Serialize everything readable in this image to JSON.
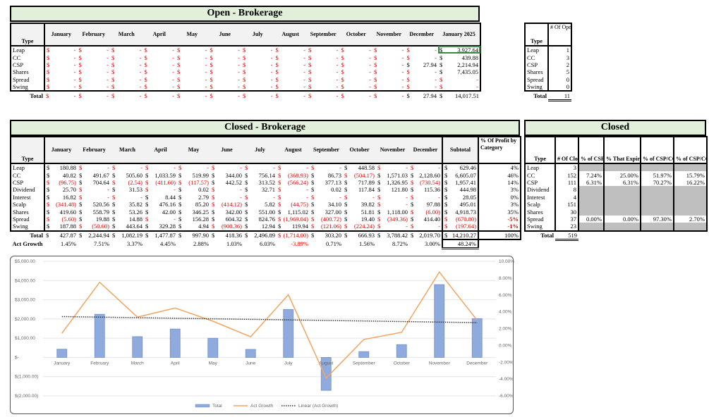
{
  "open_brokerage": {
    "title": "Open - Brokerage",
    "type_header": "Type",
    "months": [
      "January",
      "February",
      "March",
      "April",
      "May",
      "June",
      "July",
      "August",
      "September",
      "October",
      "November",
      "December",
      "January 2025"
    ],
    "rows": [
      {
        "type": "Leap",
        "values": [
          "-",
          "-",
          "-",
          "-",
          "-",
          "-",
          "-",
          "-",
          "-",
          "-",
          "-",
          "-",
          "3,927.64"
        ]
      },
      {
        "type": "CC",
        "values": [
          "-",
          "-",
          "-",
          "-",
          "-",
          "-",
          "-",
          "-",
          "-",
          "-",
          "-",
          "-",
          "439.88"
        ]
      },
      {
        "type": "CSP",
        "values": [
          "-",
          "-",
          "-",
          "-",
          "-",
          "-",
          "-",
          "-",
          "-",
          "-",
          "-",
          "27.94",
          "2,214.94"
        ]
      },
      {
        "type": "Shares",
        "values": [
          "-",
          "-",
          "-",
          "-",
          "-",
          "-",
          "-",
          "-",
          "-",
          "-",
          "-",
          "-",
          "7,435.05"
        ]
      },
      {
        "type": "Spread",
        "values": [
          "-",
          "-",
          "-",
          "-",
          "-",
          "-",
          "-",
          "-",
          "-",
          "-",
          "-",
          "-",
          "-"
        ]
      },
      {
        "type": "Swing",
        "values": [
          "-",
          "-",
          "-",
          "-",
          "-",
          "-",
          "-",
          "-",
          "-",
          "-",
          "-",
          "-",
          "-"
        ]
      }
    ],
    "total_label": "Total",
    "totals": [
      "-",
      "-",
      "-",
      "-",
      "-",
      "-",
      "-",
      "-",
      "-",
      "-",
      "-",
      "27.94",
      "14,017.51"
    ]
  },
  "open_trades": {
    "type_header": "Type",
    "header": "# Of Open Trades",
    "rows": [
      {
        "type": "Leap",
        "count": "1"
      },
      {
        "type": "CC",
        "count": "3"
      },
      {
        "type": "CSP",
        "count": "2"
      },
      {
        "type": "Shares",
        "count": "5"
      },
      {
        "type": "Spread",
        "count": "0"
      },
      {
        "type": "Swing",
        "count": "0"
      }
    ],
    "total_label": "Total",
    "total": "11"
  },
  "closed_brokerage": {
    "title": "Closed - Brokerage",
    "type_header": "Type",
    "months": [
      "January",
      "February",
      "March",
      "April",
      "May",
      "June",
      "July",
      "August",
      "September",
      "October",
      "November",
      "December"
    ],
    "subtotal_header": "Subtotal",
    "pct_header": "% Of Profit by Category",
    "rows": [
      {
        "type": "Leap",
        "values": [
          "180.88",
          "-",
          "-",
          "-",
          "-",
          "-",
          "-",
          "-",
          "-",
          "448.58",
          "-",
          "-"
        ],
        "subtotal": "629.46",
        "pct": "4%"
      },
      {
        "type": "CC",
        "values": [
          "40.82",
          "491.67",
          "505.60",
          "1,033.59",
          "519.99",
          "344.00",
          "756.14",
          "(368.93)",
          "86.73",
          "(504.17)",
          "1,571.03",
          "2,128.60"
        ],
        "subtotal": "6,605.07",
        "pct": "46%"
      },
      {
        "type": "CSP",
        "values": [
          "(96.75)",
          "704.64",
          "(2.54)",
          "(411.60)",
          "(117.57)",
          "442.52",
          "313.52",
          "(566.24)",
          "377.13",
          "717.89",
          "1,326.95",
          "(730.54)"
        ],
        "subtotal": "1,957.41",
        "pct": "14%"
      },
      {
        "type": "Dividend",
        "values": [
          "25.70",
          "-",
          "31.53",
          "-",
          "0.02",
          "-",
          "32.71",
          "-",
          "0.02",
          "117.84",
          "121.80",
          "115.36"
        ],
        "subtotal": "444.98",
        "pct": "3%"
      },
      {
        "type": "Interest",
        "values": [
          "16.82",
          "-",
          "-",
          "8.44",
          "2.79",
          "-",
          "-",
          "-",
          "-",
          "-",
          "-",
          "-"
        ],
        "subtotal": "28.05",
        "pct": "0%"
      },
      {
        "type": "Scalp",
        "values": [
          "(341.48)",
          "520.56",
          "35.82",
          "476.16",
          "85.20",
          "(414.12)",
          "5.82",
          "(44.75)",
          "34.10",
          "39.82",
          "-",
          "97.88"
        ],
        "subtotal": "495.01",
        "pct": "3%"
      },
      {
        "type": "Shares",
        "values": [
          "419.60",
          "558.79",
          "53.26",
          "42.00",
          "346.25",
          "342.00",
          "551.00",
          "1,115.02",
          "327.00",
          "51.81",
          "1,118.00",
          "(6.00)"
        ],
        "subtotal": "4,918.73",
        "pct": "35%"
      },
      {
        "type": "Spread",
        "values": [
          "(5.60)",
          "19.88",
          "14.88",
          "-",
          "156.28",
          "604.32",
          "824.76",
          "(1,969.04)",
          "(400.72)",
          "19.40",
          "(349.36)",
          "414.40"
        ],
        "subtotal": "(670.80)",
        "pct": "-5%"
      },
      {
        "type": "Swing",
        "values": [
          "187.88",
          "(50.60)",
          "443.64",
          "329.28",
          "4.94",
          "(900.36)",
          "12.94",
          "119.94",
          "(121.06)",
          "(224.24)",
          "-",
          "-"
        ],
        "subtotal": "(197.64)",
        "pct": "-1%"
      }
    ],
    "total_label": "Total",
    "totals": [
      "427.87",
      "2,244.94",
      "1,082.19",
      "1,477.87",
      "997.90",
      "418.36",
      "2,496.89",
      "(1,714.00)",
      "303.20",
      "666.93",
      "3,788.42",
      "2,019.70"
    ],
    "total_subtotal": "14,210.27",
    "total_pct": "100%",
    "growth_label": "Act Growth",
    "growth": [
      "1.45%",
      "7.51%",
      "3.37%",
      "4.45%",
      "2.88%",
      "1.03%",
      "6.03%",
      "-3.89%",
      "0.71%",
      "1.56%",
      "8.72%",
      "3.00%"
    ],
    "growth_total": "48.24%"
  },
  "closed_stats": {
    "title": "Closed",
    "headers": [
      "Type",
      "# Of Closed Trades",
      "% of CSP/CC Assigned",
      "% That Expire Worthless",
      "% of CSP/CC Closed",
      "% of CSP/CC Rolled"
    ],
    "rows": [
      {
        "type": "Leap",
        "count": "3",
        "shaded": true,
        "pcts": [
          "",
          "",
          "",
          ""
        ]
      },
      {
        "type": "CC",
        "count": "152",
        "shaded": false,
        "pcts": [
          "7.24%",
          "25.00%",
          "51.97%",
          "15.79%"
        ]
      },
      {
        "type": "CSP",
        "count": "111",
        "shaded": false,
        "pcts": [
          "6.31%",
          "6.31%",
          "70.27%",
          "16.22%"
        ]
      },
      {
        "type": "Dividend",
        "count": "8",
        "shaded": true,
        "pcts": [
          "",
          "",
          "",
          ""
        ]
      },
      {
        "type": "Interest",
        "count": "4",
        "shaded": true,
        "pcts": [
          "",
          "",
          "",
          ""
        ]
      },
      {
        "type": "Scalp",
        "count": "151",
        "shaded": true,
        "pcts": [
          "",
          "",
          "",
          ""
        ]
      },
      {
        "type": "Shares",
        "count": "30",
        "shaded": true,
        "pcts": [
          "",
          "",
          "",
          ""
        ]
      },
      {
        "type": "Spread",
        "count": "37",
        "shaded": false,
        "pcts": [
          "0.00%",
          "0.00%",
          "97.30%",
          "2.70%"
        ]
      },
      {
        "type": "Swing",
        "count": "23",
        "shaded": true,
        "pcts": [
          "",
          "",
          "",
          ""
        ]
      }
    ],
    "total_label": "Total",
    "total": "519"
  },
  "chart_data": {
    "type": "bar+line",
    "categories": [
      "January",
      "February",
      "March",
      "April",
      "May",
      "June",
      "July",
      "August",
      "September",
      "October",
      "November",
      "December"
    ],
    "series": [
      {
        "name": "Total",
        "type": "bar",
        "axis": "left",
        "color": "#8faadc",
        "values": [
          427.87,
          2244.94,
          1082.19,
          1477.87,
          997.9,
          418.36,
          2496.89,
          -1714.0,
          303.2,
          666.93,
          3788.42,
          2019.7
        ]
      },
      {
        "name": "Act Growth",
        "type": "line",
        "axis": "right",
        "color": "#f4a460",
        "values": [
          1.45,
          7.51,
          3.37,
          4.45,
          2.88,
          1.03,
          6.03,
          -3.89,
          0.71,
          1.56,
          8.72,
          3.0
        ]
      },
      {
        "name": "Linear (Act Growth)",
        "type": "trendline",
        "axis": "right",
        "color": "#333333"
      }
    ],
    "left_axis": {
      "min": -2000,
      "max": 5000,
      "ticks": [
        "$5,000.00",
        "$4,000.00",
        "$3,000.00",
        "$2,000.00",
        "$1,000.00",
        "$-",
        "$(1,000.00)",
        "$(2,000.00)"
      ]
    },
    "right_axis": {
      "min": -6,
      "max": 10,
      "ticks": [
        "10.00%",
        "8.00%",
        "6.00%",
        "4.00%",
        "2.00%",
        "0.00%",
        "-2.00%",
        "-4.00%",
        "-6.00%"
      ]
    },
    "grid": true,
    "legend": "bottom"
  }
}
